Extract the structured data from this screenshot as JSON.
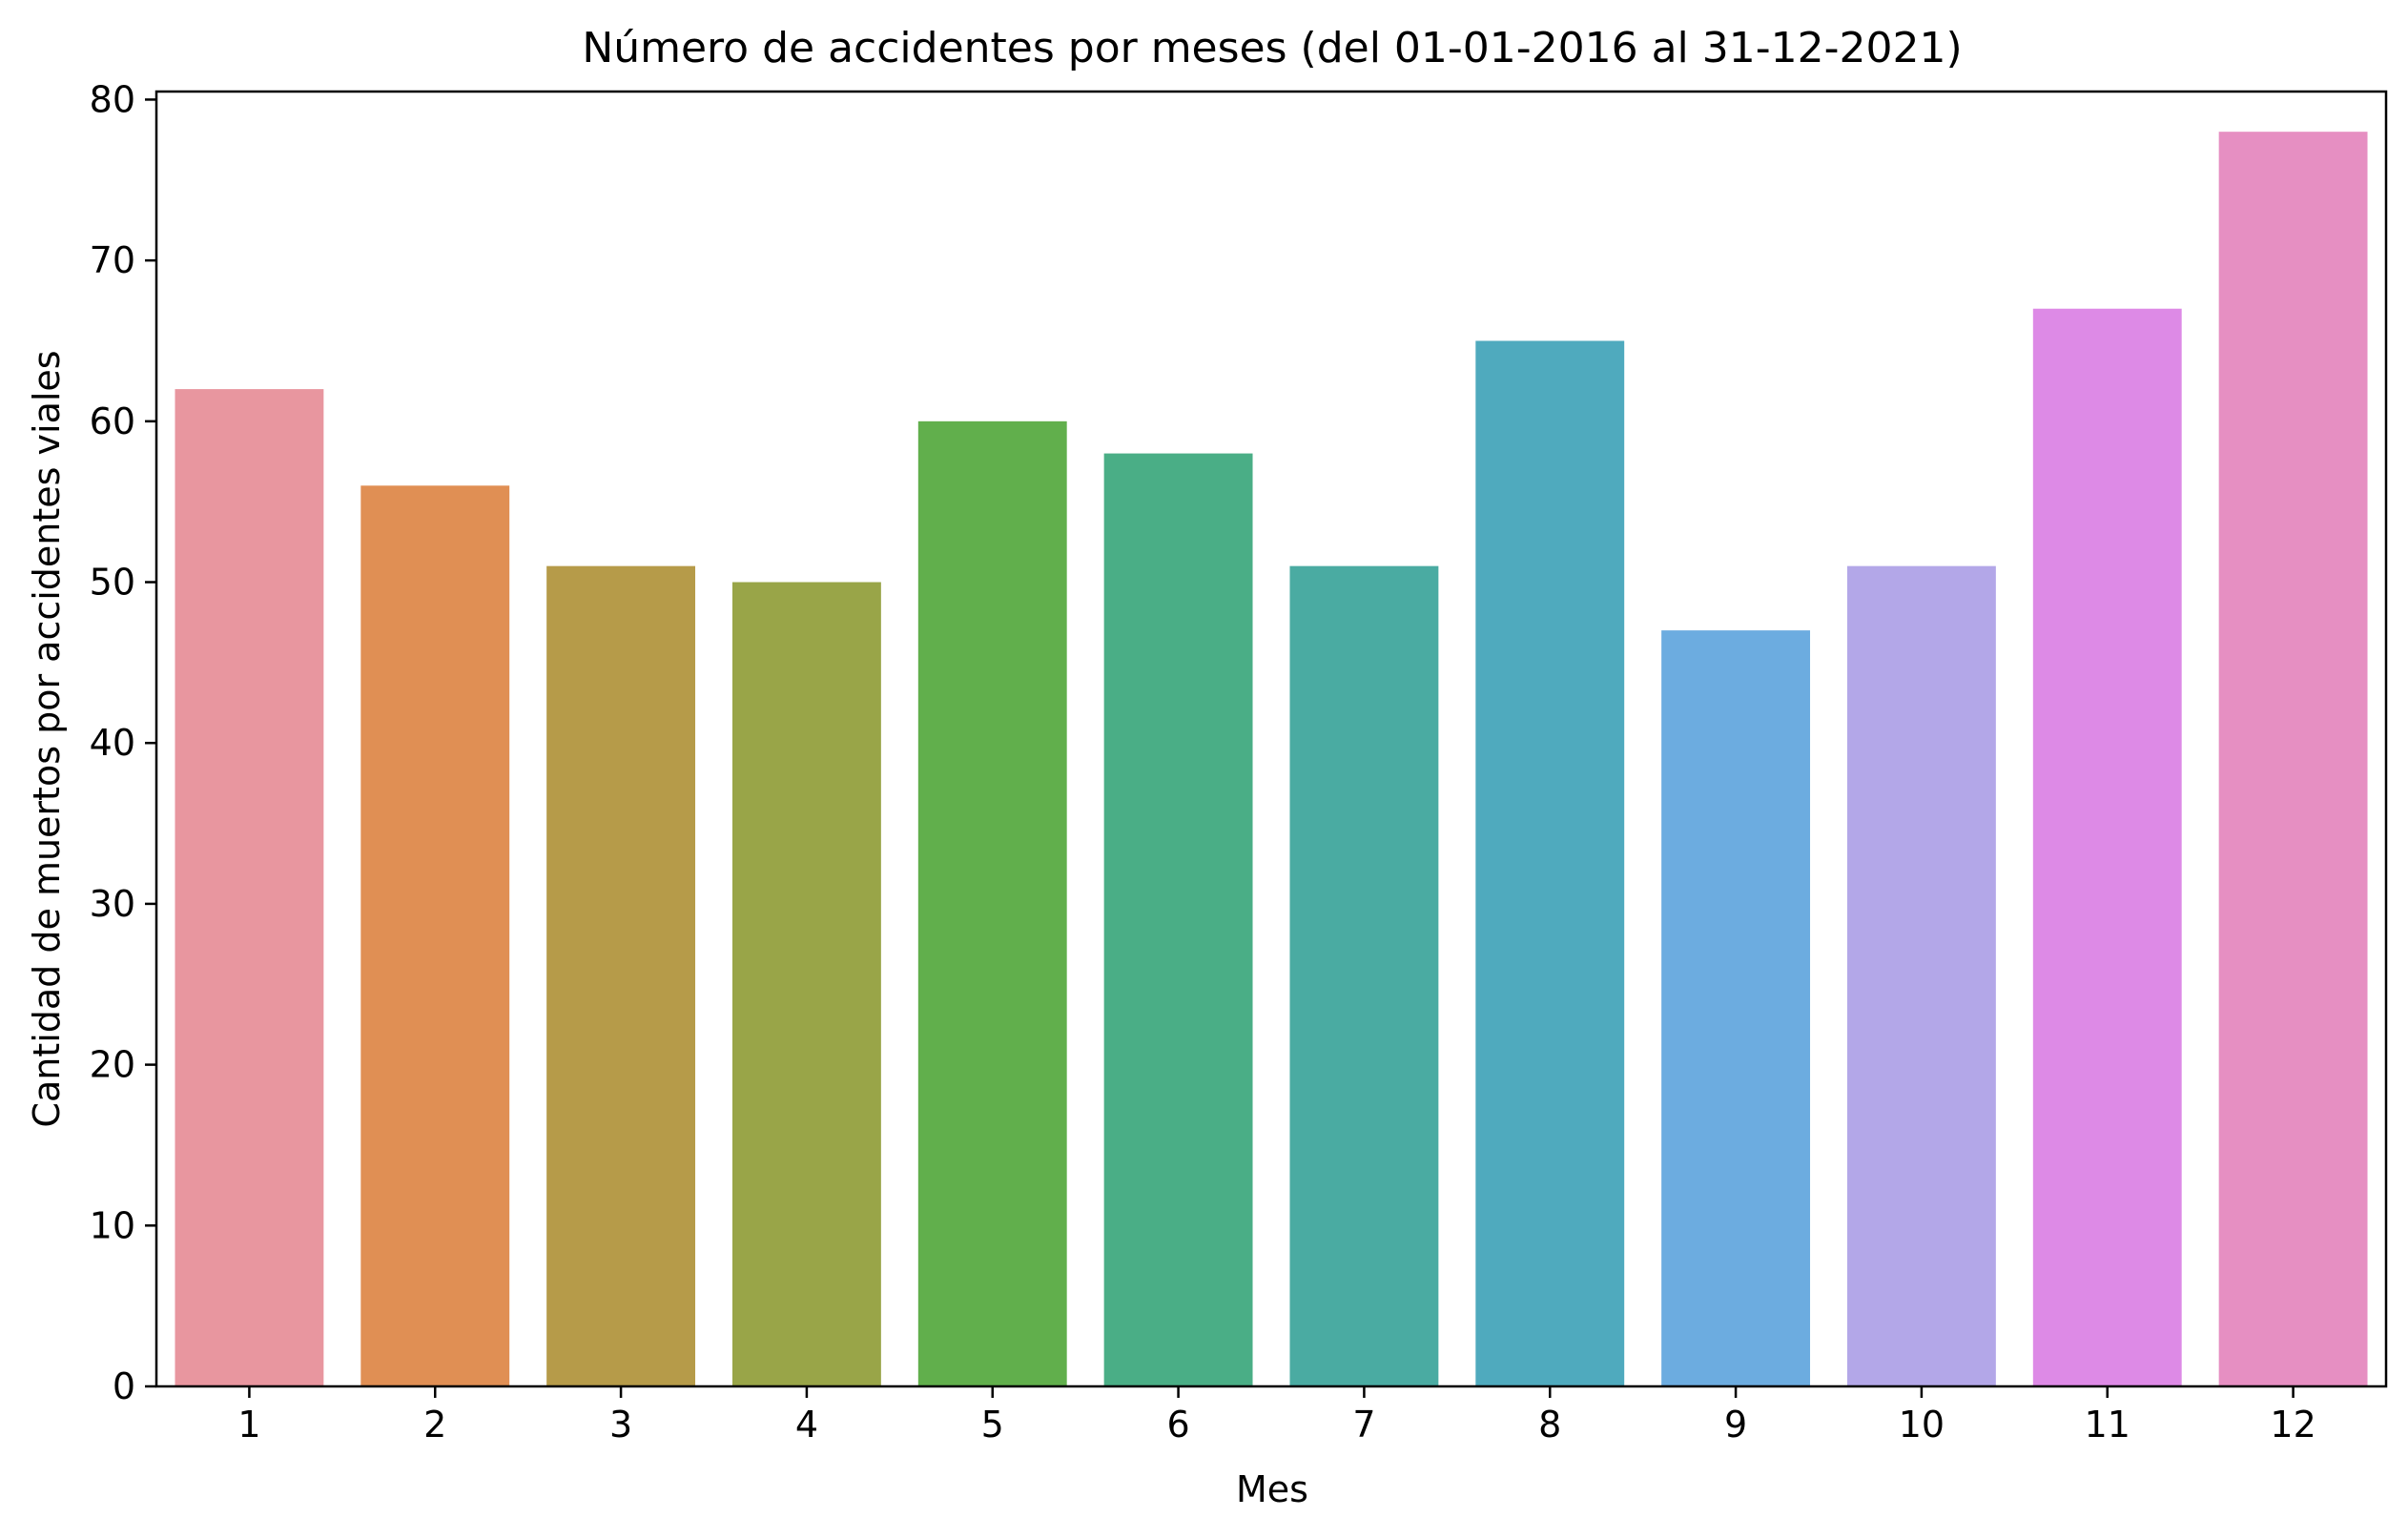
{
  "chart_data": {
    "type": "bar",
    "title": "Número de accidentes por meses (del 01-01-2016 al 31-12-2021)",
    "xlabel": "Mes",
    "ylabel": "Cantidad de muertos por accidentes viales",
    "categories": [
      "1",
      "2",
      "3",
      "4",
      "5",
      "6",
      "7",
      "8",
      "9",
      "10",
      "11",
      "12"
    ],
    "values": [
      62,
      56,
      51,
      50,
      60,
      58,
      51,
      65,
      47,
      51,
      67,
      78
    ],
    "colors": [
      "#e8969f",
      "#e08f54",
      "#b69b49",
      "#99a548",
      "#61af4c",
      "#4aae86",
      "#4aaba2",
      "#4faabe",
      "#6cace0",
      "#b3a7e8",
      "#dd8ae6",
      "#e68fc2"
    ],
    "ylim": [
      0,
      80.5
    ],
    "yticks": [
      0,
      10,
      20,
      30,
      40,
      50,
      60,
      70,
      80
    ],
    "grid": false,
    "legend": "none"
  }
}
